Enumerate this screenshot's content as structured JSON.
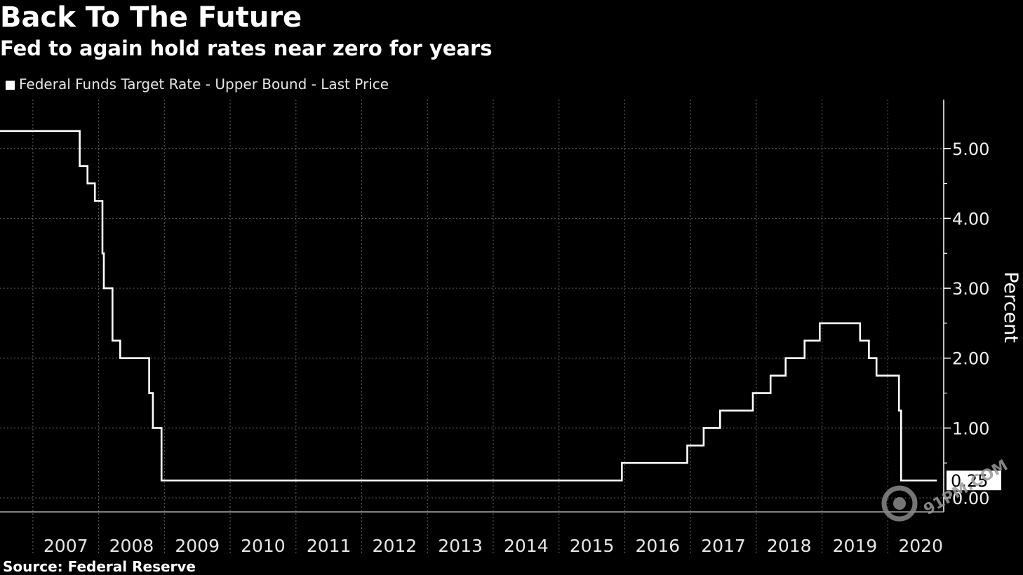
{
  "title": "Back To The Future",
  "subtitle": "Fed to again hold rates near zero for years",
  "legend_label": "Federal Funds Target Rate - Upper Bound - Last Price",
  "source": "Source: Federal Reserve",
  "colors": {
    "background": "#000000",
    "line": "#ffffff",
    "grid": "#555555",
    "text": "#ffffff"
  },
  "chart_data": {
    "type": "line",
    "title": "Back To The Future",
    "subtitle": "Fed to again hold rates near zero for years",
    "xlabel": "",
    "ylabel": "Percent",
    "xlim": [
      2006.5,
      2020.85
    ],
    "ylim": [
      -0.2,
      5.7
    ],
    "x_ticks": [
      "2007",
      "2008",
      "2009",
      "2010",
      "2011",
      "2012",
      "2013",
      "2014",
      "2015",
      "2016",
      "2017",
      "2018",
      "2019",
      "2020"
    ],
    "y_ticks": [
      0,
      1,
      2,
      3,
      4,
      5
    ],
    "y_tick_labels": [
      "0.00",
      "1.00",
      "2.00",
      "3.00",
      "4.00",
      "5.00"
    ],
    "grid": true,
    "legend_position": "top-left",
    "last_value_label": "0.25",
    "series": [
      {
        "name": "Federal Funds Target Rate - Upper Bound - Last Price",
        "step": true,
        "points": [
          [
            "2006-07-01",
            5.25
          ],
          [
            "2007-09-18",
            4.75
          ],
          [
            "2007-10-31",
            4.5
          ],
          [
            "2007-12-11",
            4.25
          ],
          [
            "2008-01-22",
            3.5
          ],
          [
            "2008-01-30",
            3.0
          ],
          [
            "2008-03-18",
            2.25
          ],
          [
            "2008-04-30",
            2.0
          ],
          [
            "2008-10-08",
            1.5
          ],
          [
            "2008-10-29",
            1.0
          ],
          [
            "2008-12-16",
            0.25
          ],
          [
            "2015-12-16",
            0.5
          ],
          [
            "2016-12-14",
            0.75
          ],
          [
            "2017-03-15",
            1.0
          ],
          [
            "2017-06-14",
            1.25
          ],
          [
            "2017-12-13",
            1.5
          ],
          [
            "2018-03-21",
            1.75
          ],
          [
            "2018-06-13",
            2.0
          ],
          [
            "2018-09-26",
            2.25
          ],
          [
            "2018-12-19",
            2.5
          ],
          [
            "2019-07-31",
            2.25
          ],
          [
            "2019-09-18",
            2.0
          ],
          [
            "2019-10-30",
            1.75
          ],
          [
            "2020-03-03",
            1.25
          ],
          [
            "2020-03-15",
            0.25
          ],
          [
            "2020-09-30",
            0.25
          ]
        ]
      }
    ]
  }
}
